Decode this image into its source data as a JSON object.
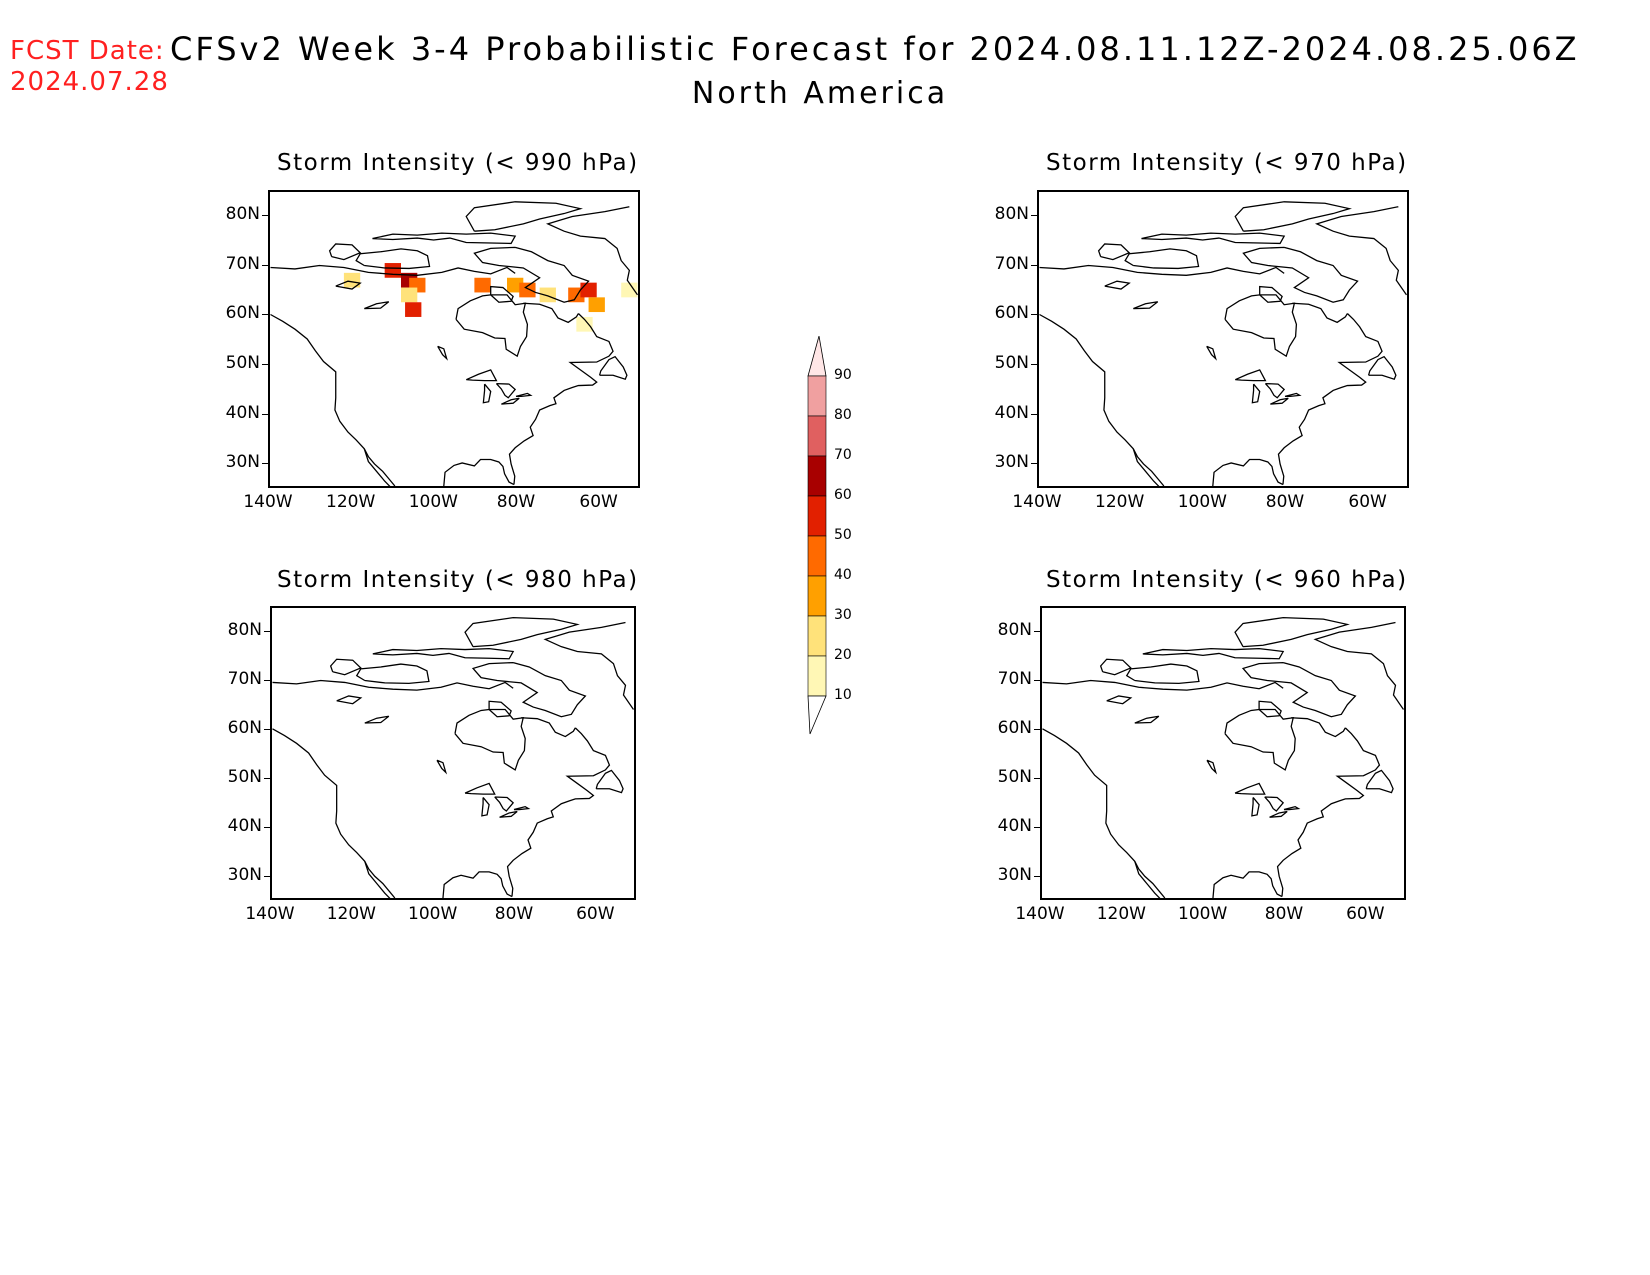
{
  "header": {
    "fcst_date_label": "FCST Date:",
    "fcst_date_value": "2024.07.28",
    "title": "CFSv2 Week 3-4 Probabilistic Forecast for 2024.08.11.12Z-2024.08.25.06Z",
    "subtitle": "North America"
  },
  "axes": {
    "lat_ticks": [
      "80N",
      "70N",
      "60N",
      "50N",
      "40N",
      "30N"
    ],
    "lon_ticks": [
      "140W",
      "120W",
      "100W",
      "80W",
      "60W"
    ]
  },
  "panels": [
    {
      "id": "p990",
      "title": "Storm Intensity (< 990 hPa)",
      "has_signal": true
    },
    {
      "id": "p970",
      "title": "Storm Intensity (< 970 hPa)",
      "has_signal": false
    },
    {
      "id": "p980",
      "title": "Storm Intensity (< 980 hPa)",
      "has_signal": false
    },
    {
      "id": "p960",
      "title": "Storm Intensity (< 960 hPa)",
      "has_signal": false
    }
  ],
  "colorbar": {
    "levels": [
      "10",
      "20",
      "30",
      "40",
      "50",
      "60",
      "70",
      "80",
      "90"
    ],
    "colors": [
      "#fff7b5",
      "#ffe27a",
      "#ffa000",
      "#ff6a00",
      "#e22000",
      "#a80000",
      "#e06060",
      "#f0a0a0",
      "#ffe6e6"
    ]
  },
  "chart_data": {
    "type": "heatmap",
    "title": "CFSv2 Week 3-4 Probabilistic Forecast for 2024.08.11.12Z-2024.08.25.06Z",
    "region": "North America",
    "units": "%",
    "bins": [
      10,
      20,
      30,
      40,
      50,
      60,
      70,
      80,
      90
    ],
    "lat_range": [
      25,
      85
    ],
    "lon_range": [
      -140,
      -50
    ],
    "panels": [
      {
        "name": "Storm Intensity (< 990 hPa)",
        "cells": [
          {
            "lon": -120,
            "lat": 67,
            "value": 20
          },
          {
            "lon": -110,
            "lat": 69,
            "value": 50
          },
          {
            "lon": -106,
            "lat": 67,
            "value": 60
          },
          {
            "lon": -104,
            "lat": 66,
            "value": 40
          },
          {
            "lon": -106,
            "lat": 64,
            "value": 20
          },
          {
            "lon": -105,
            "lat": 61,
            "value": 50
          },
          {
            "lon": -88,
            "lat": 66,
            "value": 40
          },
          {
            "lon": -80,
            "lat": 66,
            "value": 30
          },
          {
            "lon": -77,
            "lat": 65,
            "value": 40
          },
          {
            "lon": -72,
            "lat": 64,
            "value": 20
          },
          {
            "lon": -65,
            "lat": 64,
            "value": 40
          },
          {
            "lon": -62,
            "lat": 65,
            "value": 50
          },
          {
            "lon": -60,
            "lat": 62,
            "value": 30
          },
          {
            "lon": -63,
            "lat": 58,
            "value": 10
          },
          {
            "lon": -52,
            "lat": 65,
            "value": 10
          }
        ]
      },
      {
        "name": "Storm Intensity (< 970 hPa)",
        "cells": []
      },
      {
        "name": "Storm Intensity (< 980 hPa)",
        "cells": []
      },
      {
        "name": "Storm Intensity (< 960 hPa)",
        "cells": []
      }
    ]
  }
}
